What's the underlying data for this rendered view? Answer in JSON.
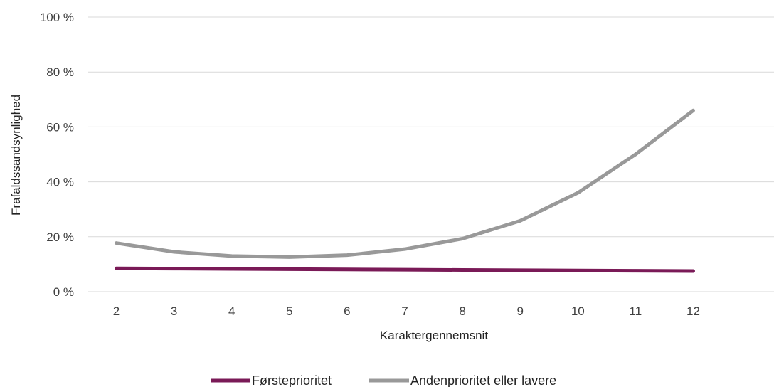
{
  "chart_data": {
    "type": "line",
    "xlabel": "Karaktergennemsnit",
    "ylabel": "Frafaldssandsynlighed",
    "x": [
      2,
      3,
      4,
      5,
      6,
      7,
      8,
      9,
      10,
      11,
      12
    ],
    "y_ticks": [
      "0 %",
      "20 %",
      "40 %",
      "60 %",
      "80 %",
      "100 %"
    ],
    "ylim": [
      0,
      100
    ],
    "grid": true,
    "legend_position": "bottom",
    "series": [
      {
        "name": "Førsteprioritet",
        "color": "#7a1a57",
        "values": [
          8.5,
          8.4,
          8.3,
          8.2,
          8.1,
          8.0,
          7.9,
          7.8,
          7.7,
          7.6,
          7.5
        ]
      },
      {
        "name": "Andenprioritet eller lavere",
        "color": "#999999",
        "values": [
          17.7,
          14.5,
          13.0,
          12.6,
          13.3,
          15.5,
          19.3,
          25.8,
          36.0,
          50.0,
          66.0
        ]
      }
    ]
  }
}
